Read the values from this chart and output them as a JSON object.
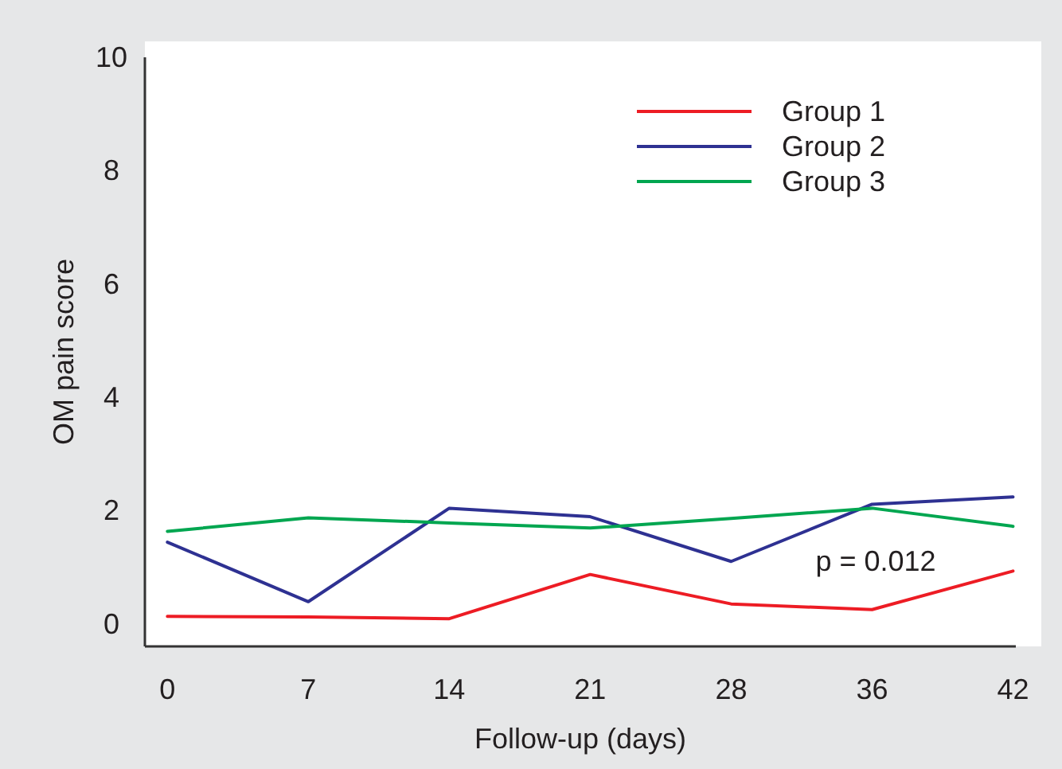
{
  "chart_data": {
    "type": "line",
    "xlabel": "Follow-up (days)",
    "ylabel": "OM pain score",
    "categories": [
      "0",
      "7",
      "14",
      "21",
      "28",
      "36",
      "42"
    ],
    "series": [
      {
        "name": "Group 1",
        "color": "#ed1c24",
        "values": [
          0.13,
          0.12,
          0.09,
          0.87,
          0.35,
          0.25,
          0.93
        ]
      },
      {
        "name": "Group 2",
        "color": "#2e3192",
        "values": [
          1.44,
          0.39,
          2.04,
          1.89,
          1.1,
          2.11,
          2.24
        ]
      },
      {
        "name": "Group 3",
        "color": "#00a650",
        "values": [
          1.63,
          1.87,
          1.78,
          1.69,
          1.86,
          2.04,
          1.72
        ]
      }
    ],
    "ylim": [
      -0.4,
      10
    ],
    "yticks": [
      0,
      2,
      4,
      6,
      8,
      10
    ],
    "grid": false,
    "legend": "top right",
    "marker": "none",
    "line_style": "solid",
    "annotations": [
      "p = 0.012"
    ]
  }
}
